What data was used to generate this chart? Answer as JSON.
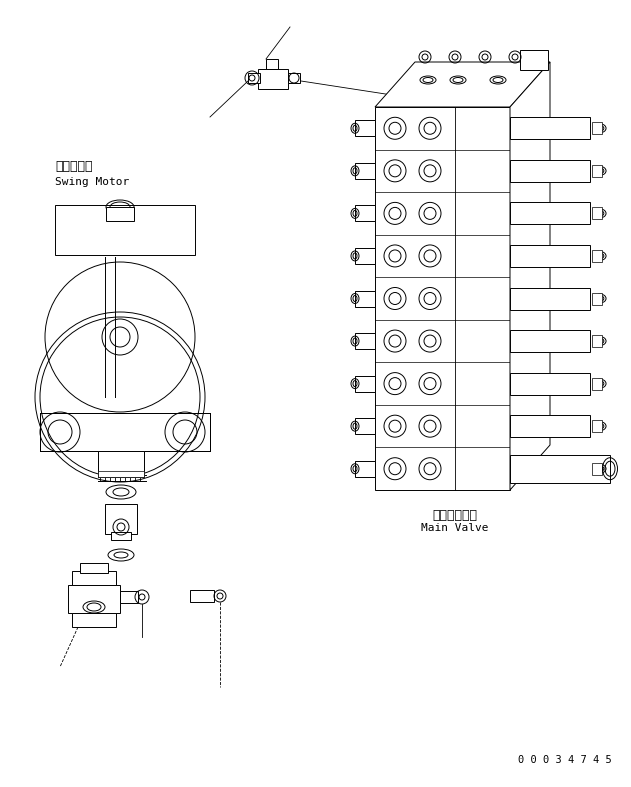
{
  "bg_color": "#ffffff",
  "line_color": "#000000",
  "fig_width": 6.31,
  "fig_height": 7.87,
  "dpi": 100,
  "label_swing_motor_jp": "旋回モータ",
  "label_swing_motor_en": "Swing Motor",
  "label_main_valve_jp": "メインバルブ",
  "label_main_valve_en": "Main Valve",
  "part_number": "0 0 0 3 4 7 4 5"
}
